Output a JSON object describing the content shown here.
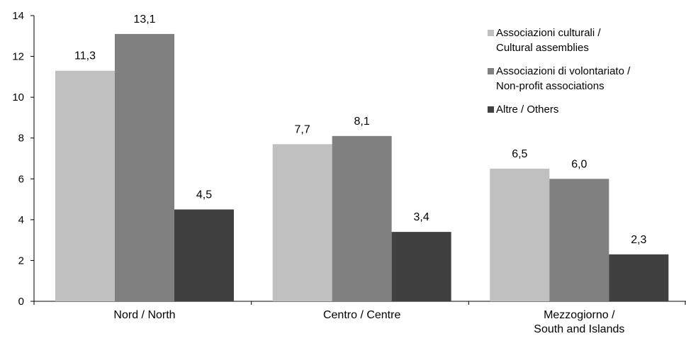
{
  "chart_data": {
    "type": "bar",
    "title": "",
    "xlabel": "",
    "ylabel": "",
    "ylim": [
      0,
      14
    ],
    "yticks": [
      0,
      2,
      4,
      6,
      8,
      10,
      12,
      14
    ],
    "grid": false,
    "legend_position": "top-right",
    "decimal_separator": ",",
    "categories": [
      [
        "Nord / North"
      ],
      [
        "Centro / Centre"
      ],
      [
        "Mezzogiorno /",
        "South and Islands"
      ]
    ],
    "series": [
      {
        "name": [
          "Associazioni culturali /",
          "Cultural assemblies"
        ],
        "color": "#c0c0c0",
        "values": [
          11.3,
          7.7,
          6.5
        ]
      },
      {
        "name": [
          "Associazioni di volontariato /",
          "Non-profit associations"
        ],
        "color": "#808080",
        "values": [
          13.1,
          8.1,
          6.0
        ]
      },
      {
        "name": [
          "Altre / Others"
        ],
        "color": "#404040",
        "values": [
          4.5,
          3.4,
          2.3
        ]
      }
    ]
  }
}
